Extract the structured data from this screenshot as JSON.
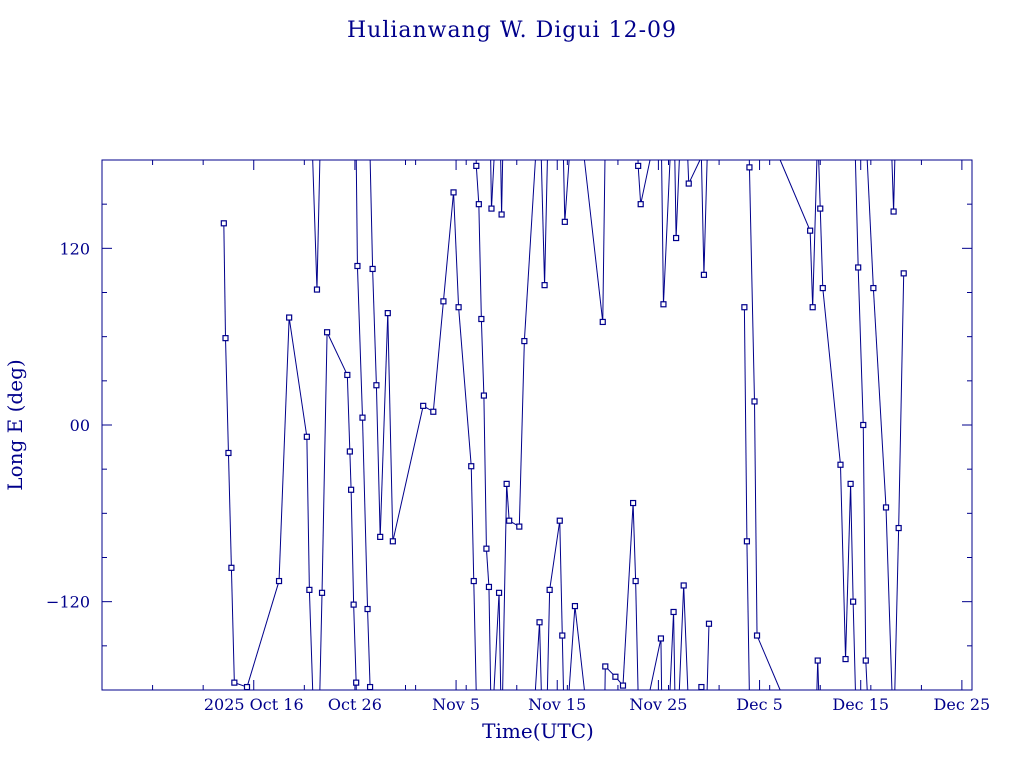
{
  "chart_data": {
    "type": "scatter",
    "title": "Hulianwang W. Digui 12-09",
    "xlabel": "Time(UTC)",
    "ylabel": "Long E (deg)",
    "x_tick_labels": [
      {
        "date": "2025-10-16",
        "label": "2025 Oct 16"
      },
      {
        "date": "2025-10-26",
        "label": "Oct 26"
      },
      {
        "date": "2025-11-05",
        "label": "Nov  5"
      },
      {
        "date": "2025-11-15",
        "label": "Nov 15"
      },
      {
        "date": "2025-11-25",
        "label": "Nov 25"
      },
      {
        "date": "2025-12-05",
        "label": "Dec  5"
      },
      {
        "date": "2025-12-15",
        "label": "Dec 15"
      },
      {
        "date": "2025-12-25",
        "label": "Dec 25"
      }
    ],
    "y_ticks": [
      {
        "value": 120,
        "label": "120"
      },
      {
        "value": 0,
        "label": "00"
      },
      {
        "value": -120,
        "label": "−120"
      }
    ],
    "xlim": [
      "2025-10-01T00:00",
      "2025-12-26T00:00"
    ],
    "ylim": [
      -180,
      180
    ],
    "grid": false,
    "connect_points": true,
    "wrap_longitude": true,
    "series": [
      {
        "values": [
          [
            "2025-10-13T01:00",
            137
          ],
          [
            "2025-10-13T05:00",
            59
          ],
          [
            "2025-10-13T12:00",
            -19
          ],
          [
            "2025-10-13T19:00",
            -97
          ],
          [
            "2025-10-14T02:00",
            -175
          ],
          [
            "2025-10-15T08:00",
            -178
          ],
          [
            "2025-10-18T12:00",
            -106
          ],
          [
            "2025-10-19T12:00",
            73
          ],
          [
            "2025-10-21T06:00",
            -8
          ],
          [
            "2025-10-21T12:00",
            -112
          ],
          [
            "2025-10-22T06:00",
            92
          ],
          [
            "2025-10-22T18:00",
            -114
          ],
          [
            "2025-10-23T06:00",
            63
          ],
          [
            "2025-10-25T06:00",
            34
          ],
          [
            "2025-10-25T12:00",
            -18
          ],
          [
            "2025-10-25T15:00",
            -44
          ],
          [
            "2025-10-25T21:00",
            -122
          ],
          [
            "2025-10-26T03:00",
            -175
          ],
          [
            "2025-10-26T06:00",
            108
          ],
          [
            "2025-10-26T18:00",
            5
          ],
          [
            "2025-10-27T06:00",
            -125
          ],
          [
            "2025-10-27T12:00",
            -178
          ],
          [
            "2025-10-27T18:00",
            106
          ],
          [
            "2025-10-28T03:00",
            27
          ],
          [
            "2025-10-28T12:00",
            -76
          ],
          [
            "2025-10-29T06:00",
            76
          ],
          [
            "2025-10-29T18:00",
            -79
          ],
          [
            "2025-11-01T18:00",
            13
          ],
          [
            "2025-11-02T18:00",
            9
          ],
          [
            "2025-11-03T18:00",
            84
          ],
          [
            "2025-11-04T18:00",
            158
          ],
          [
            "2025-11-05T06:00",
            80
          ],
          [
            "2025-11-06T12:00",
            -28
          ],
          [
            "2025-11-06T18:00",
            -106
          ],
          [
            "2025-11-07T00:00",
            176
          ],
          [
            "2025-11-07T06:00",
            150
          ],
          [
            "2025-11-07T12:00",
            72
          ],
          [
            "2025-11-07T18:00",
            20
          ],
          [
            "2025-11-08T00:00",
            -84
          ],
          [
            "2025-11-08T06:00",
            -110
          ],
          [
            "2025-11-08T12:00",
            147
          ],
          [
            "2025-11-09T06:00",
            -114
          ],
          [
            "2025-11-09T12:00",
            143
          ],
          [
            "2025-11-10T00:00",
            -40
          ],
          [
            "2025-11-10T06:00",
            -65
          ],
          [
            "2025-11-11T06:00",
            -69
          ],
          [
            "2025-11-11T18:00",
            57
          ],
          [
            "2025-11-13T06:00",
            -134
          ],
          [
            "2025-11-13T18:00",
            95
          ],
          [
            "2025-11-14T06:00",
            -112
          ],
          [
            "2025-11-15T06:00",
            -65
          ],
          [
            "2025-11-15T12:00",
            -143
          ],
          [
            "2025-11-15T18:00",
            138
          ],
          [
            "2025-11-16T18:00",
            -123
          ],
          [
            "2025-11-19T12:00",
            70
          ],
          [
            "2025-11-19T18:00",
            -164
          ],
          [
            "2025-11-20T18:00",
            -171
          ],
          [
            "2025-11-21T12:00",
            -177
          ],
          [
            "2025-11-22T12:00",
            -53
          ],
          [
            "2025-11-22T18:00",
            -106
          ],
          [
            "2025-11-23T00:00",
            176
          ],
          [
            "2025-11-23T06:00",
            150
          ],
          [
            "2025-11-25T06:00",
            -145
          ],
          [
            "2025-11-25T12:00",
            82
          ],
          [
            "2025-11-26T12:00",
            -127
          ],
          [
            "2025-11-26T18:00",
            127
          ],
          [
            "2025-11-27T12:00",
            -109
          ],
          [
            "2025-11-28T00:00",
            164
          ],
          [
            "2025-11-29T06:00",
            -178
          ],
          [
            "2025-11-29T12:00",
            102
          ],
          [
            "2025-11-30T00:00",
            -135
          ]
        ]
      },
      {
        "values": [
          [
            "2025-12-03T12:00",
            80
          ],
          [
            "2025-12-03T18:00",
            -79
          ],
          [
            "2025-12-04T00:00",
            175
          ],
          [
            "2025-12-04T12:00",
            16
          ],
          [
            "2025-12-04T18:00",
            -143
          ],
          [
            "2025-12-10T00:00",
            132
          ],
          [
            "2025-12-10T06:00",
            80
          ],
          [
            "2025-12-10T18:00",
            -160
          ],
          [
            "2025-12-11T00:00",
            147
          ],
          [
            "2025-12-11T06:00",
            93
          ],
          [
            "2025-12-13T00:00",
            -27
          ],
          [
            "2025-12-13T12:00",
            -159
          ],
          [
            "2025-12-14T00:00",
            -40
          ],
          [
            "2025-12-14T06:00",
            -120
          ],
          [
            "2025-12-14T18:00",
            107
          ],
          [
            "2025-12-15T06:00",
            0
          ],
          [
            "2025-12-15T12:00",
            -160
          ],
          [
            "2025-12-16T06:00",
            93
          ],
          [
            "2025-12-17T12:00",
            -56
          ],
          [
            "2025-12-18T06:00",
            145
          ],
          [
            "2025-12-18T18:00",
            -70
          ],
          [
            "2025-12-19T06:00",
            103
          ]
        ]
      }
    ]
  }
}
